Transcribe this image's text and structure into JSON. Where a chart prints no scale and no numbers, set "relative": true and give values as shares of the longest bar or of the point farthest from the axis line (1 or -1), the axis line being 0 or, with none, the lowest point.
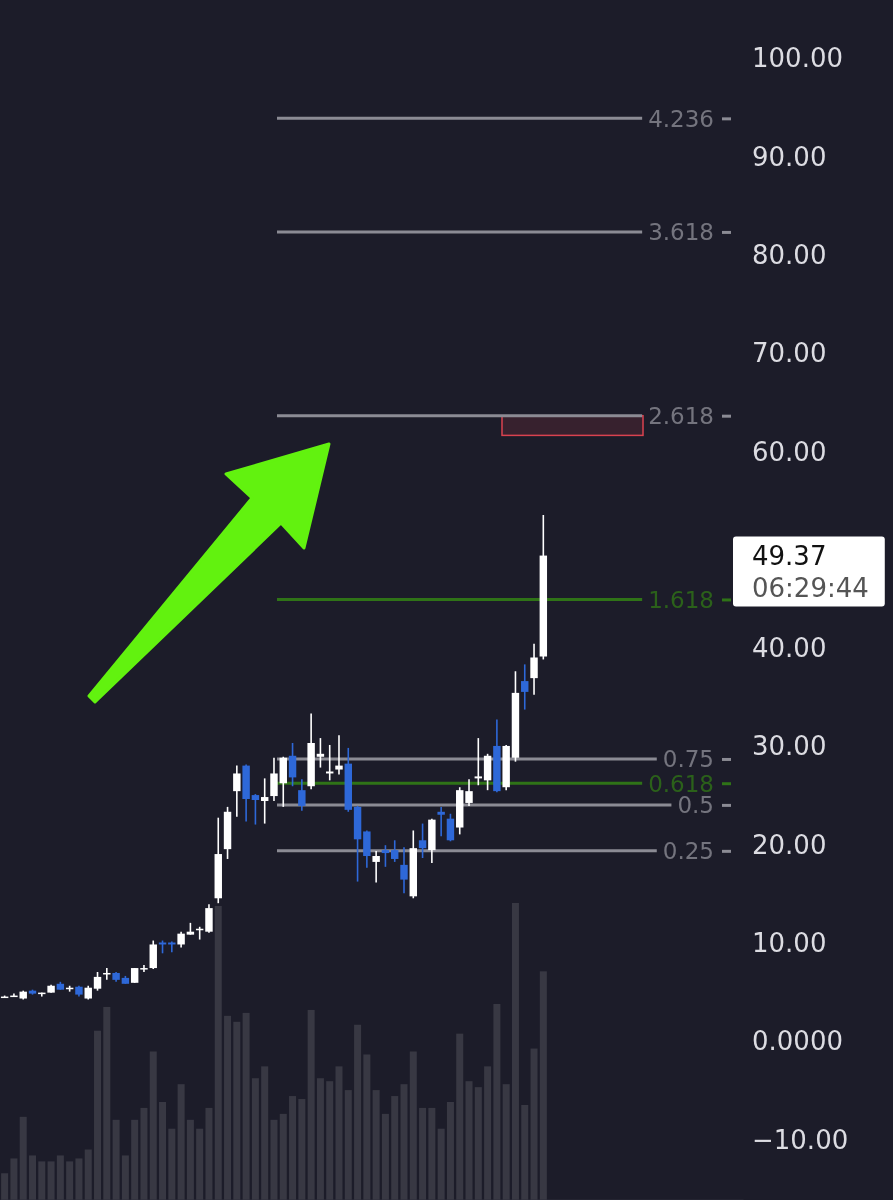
{
  "chart_data": [
    {
      "type": "candlestick",
      "categories": [
        null,
        null,
        null,
        null,
        null,
        null,
        null,
        null,
        null,
        null,
        null,
        null,
        null,
        null,
        null,
        null,
        null,
        null,
        null,
        null,
        null,
        null,
        null,
        null,
        null,
        null,
        null,
        null,
        null,
        null,
        null,
        null,
        null,
        null,
        null,
        null,
        null,
        null,
        null,
        null,
        null,
        null,
        null,
        null,
        null,
        null,
        null,
        null,
        null,
        null,
        null,
        null,
        null,
        null,
        null,
        null,
        null,
        null,
        null,
        null,
        null,
        null,
        null,
        null,
        null,
        null,
        null,
        null,
        null,
        null,
        null,
        null,
        null,
        null,
        null,
        null,
        null,
        null,
        null,
        null
      ],
      "ohlc": [
        [
          4.5,
          4.6,
          4.4,
          4.5
        ],
        [
          4.5,
          4.8,
          4.5,
          4.6
        ],
        [
          4.3,
          5.1,
          4.2,
          5.0
        ],
        [
          5.1,
          5.2,
          4.7,
          4.8
        ],
        [
          4.8,
          4.9,
          4.5,
          4.9
        ],
        [
          4.9,
          5.7,
          4.9,
          5.6
        ],
        [
          5.8,
          6.0,
          5.2,
          5.2
        ],
        [
          5.3,
          5.6,
          5.0,
          5.4
        ],
        [
          5.5,
          5.6,
          4.5,
          4.7
        ],
        [
          4.3,
          5.6,
          4.2,
          5.4
        ],
        [
          5.3,
          7.0,
          5.1,
          6.5
        ],
        [
          6.8,
          7.4,
          6.2,
          6.9
        ],
        [
          6.9,
          7.0,
          6.0,
          6.2
        ],
        [
          6.4,
          6.6,
          5.8,
          5.8
        ],
        [
          5.9,
          7.4,
          5.9,
          7.4
        ],
        [
          7.3,
          7.7,
          7.0,
          7.4
        ],
        [
          7.4,
          10.2,
          7.3,
          9.8
        ],
        [
          10.0,
          10.2,
          8.9,
          9.8
        ],
        [
          10.0,
          10.1,
          9.0,
          9.8
        ],
        [
          9.8,
          11.1,
          9.5,
          10.9
        ],
        [
          10.8,
          12.0,
          10.8,
          11.1
        ],
        [
          11.3,
          11.6,
          10.3,
          11.4
        ],
        [
          11.1,
          13.9,
          11.0,
          13.5
        ],
        [
          14.5,
          22.7,
          14.0,
          19.0
        ],
        [
          19.5,
          23.8,
          18.5,
          23.3
        ],
        [
          25.4,
          28.0,
          22.8,
          27.2
        ],
        [
          28.0,
          28.1,
          22.3,
          24.6
        ],
        [
          25.0,
          25.1,
          22.0,
          24.5
        ],
        [
          24.4,
          26.7,
          22.1,
          24.8
        ],
        [
          24.9,
          28.8,
          24.4,
          27.2
        ],
        [
          26.2,
          28.9,
          23.8,
          28.8
        ],
        [
          29.0,
          30.3,
          25.9,
          26.8
        ],
        [
          25.5,
          26.6,
          23.4,
          23.9
        ],
        [
          25.9,
          33.3,
          25.6,
          30.3
        ],
        [
          28.9,
          30.8,
          27.8,
          29.2
        ],
        [
          27.2,
          30.1,
          26.5,
          27.4
        ],
        [
          27.6,
          31.1,
          27.1,
          28.0
        ],
        [
          28.2,
          29.8,
          23.3,
          23.5
        ],
        [
          23.8,
          23.9,
          16.2,
          20.5
        ],
        [
          21.3,
          21.4,
          17.6,
          18.8
        ],
        [
          18.2,
          19.3,
          16.1,
          18.8
        ],
        [
          19.4,
          19.9,
          17.7,
          19.1
        ],
        [
          19.4,
          20.4,
          18.2,
          18.5
        ],
        [
          17.9,
          19.7,
          15.0,
          16.4
        ],
        [
          14.7,
          21.4,
          14.5,
          19.6
        ],
        [
          20.4,
          22.1,
          18.6,
          19.6
        ],
        [
          19.4,
          22.6,
          18.1,
          22.5
        ],
        [
          23.3,
          23.8,
          20.8,
          23.0
        ],
        [
          22.6,
          23.1,
          20.3,
          20.4
        ],
        [
          21.7,
          25.8,
          21.0,
          25.5
        ],
        [
          24.2,
          26.6,
          23.9,
          25.4
        ],
        [
          26.7,
          30.8,
          26.0,
          26.9
        ],
        [
          26.5,
          29.2,
          25.5,
          29.0
        ],
        [
          30.0,
          32.7,
          25.3,
          25.4
        ],
        [
          25.8,
          30.1,
          25.5,
          30.0
        ],
        [
          28.8,
          37.6,
          28.4,
          35.4
        ],
        [
          36.6,
          38.3,
          33.7,
          35.5
        ],
        [
          36.9,
          40.4,
          35.2,
          39.0
        ],
        [
          39.1,
          53.5,
          38.8,
          49.37
        ],
        null,
        null,
        null,
        null,
        null,
        null,
        null,
        null,
        null,
        null,
        null,
        null,
        null,
        null,
        null,
        null,
        null,
        null,
        null,
        null,
        null
      ],
      "colors": [
        "#ffffff",
        "#ffffff",
        "#ffffff",
        "#2e68d8",
        "#ffffff",
        "#ffffff",
        "#2e68d8",
        "#ffffff",
        "#2e68d8",
        "#ffffff",
        "#ffffff",
        "#ffffff",
        "#2e68d8",
        "#2e68d8",
        "#ffffff",
        "#ffffff",
        "#ffffff",
        "#2e68d8",
        "#2e68d8",
        "#ffffff",
        "#ffffff",
        "#ffffff",
        "#ffffff",
        "#ffffff",
        "#ffffff",
        "#ffffff",
        "#2e68d8",
        "#2e68d8",
        "#ffffff",
        "#ffffff",
        "#ffffff",
        "#2e68d8",
        "#2e68d8",
        "#ffffff",
        "#ffffff",
        "#ffffff",
        "#ffffff",
        "#2e68d8",
        "#2e68d8",
        "#2e68d8",
        "#ffffff",
        "#2e68d8",
        "#2e68d8",
        "#2e68d8",
        "#ffffff",
        "#2e68d8",
        "#ffffff",
        "#2e68d8",
        "#2e68d8",
        "#ffffff",
        "#ffffff",
        "#ffffff",
        "#ffffff",
        "#2e68d8",
        "#ffffff",
        "#ffffff",
        "#2e68d8",
        "#ffffff",
        "#ffffff",
        null,
        null,
        null,
        null,
        null,
        null,
        null,
        null,
        null,
        null,
        null,
        null,
        null,
        null,
        null,
        null,
        null,
        null,
        null,
        null,
        null
      ],
      "ylim": [
        -16.2,
        105.9
      ],
      "yticks": [
        {
          "value": 100,
          "label": "100.00"
        },
        {
          "value": 90,
          "label": "90.00"
        },
        {
          "value": 80,
          "label": "80.00"
        },
        {
          "value": 70,
          "label": "70.00"
        },
        {
          "value": 60,
          "label": "60.00"
        },
        {
          "value": 40,
          "label": "40.00"
        },
        {
          "value": 30,
          "label": "30.00"
        },
        {
          "value": 20,
          "label": "20.00"
        },
        {
          "value": 10,
          "label": "10.00"
        },
        {
          "value": 0,
          "label": "0.0000"
        },
        {
          "value": -10,
          "label": "−10.00"
        }
      ],
      "y2lim": [
        -1.65,
        4.88
      ],
      "y2ticks": [
        0.25,
        0.5,
        0.618,
        0.75,
        1.618,
        2.618,
        3.618,
        4.236
      ],
      "ref_lines": [
        {
          "axis": "y2",
          "value": 4.236,
          "color": "#8b8b94"
        },
        {
          "axis": "y2",
          "value": 3.618,
          "color": "#8b8b94"
        },
        {
          "axis": "y2",
          "value": 2.618,
          "color": "#8b8b94"
        },
        {
          "axis": "y2",
          "value": 1.618,
          "color": "#2f7317"
        },
        {
          "axis": "y2",
          "value": 0.75,
          "color": "#8b8b94"
        },
        {
          "axis": "y2",
          "value": 0.618,
          "color": "#2f7317"
        },
        {
          "axis": "y2",
          "value": 0.5,
          "color": "#8b8b94"
        },
        {
          "axis": "y2",
          "value": 0.25,
          "color": "#8b8b94"
        }
      ],
      "bands": [
        {
          "axis": "y",
          "from": 61.6,
          "to": 63.6,
          "color": "#d9424f"
        }
      ],
      "annotations": [
        "49.37",
        "06:29:44"
      ]
    },
    {
      "type": "bar",
      "relative": true,
      "categories": [
        null,
        null,
        null,
        null,
        null,
        null,
        null,
        null,
        null,
        null,
        null,
        null,
        null,
        null,
        null,
        null,
        null,
        null,
        null,
        null,
        null,
        null,
        null,
        null,
        null,
        null,
        null,
        null,
        null,
        null,
        null,
        null,
        null,
        null,
        null,
        null,
        null,
        null,
        null,
        null,
        null,
        null,
        null,
        null,
        null,
        null,
        null,
        null,
        null,
        null,
        null,
        null,
        null,
        null,
        null,
        null,
        null,
        null,
        null
      ],
      "values": [
        0.09,
        0.14,
        0.28,
        0.15,
        0.13,
        0.13,
        0.15,
        0.13,
        0.14,
        0.17,
        0.57,
        0.65,
        0.27,
        0.15,
        0.27,
        0.31,
        0.5,
        0.33,
        0.24,
        0.39,
        0.27,
        0.24,
        0.31,
        0.99,
        0.62,
        0.6,
        0.63,
        0.41,
        0.45,
        0.27,
        0.29,
        0.35,
        0.34,
        0.64,
        0.41,
        0.4,
        0.45,
        0.37,
        0.59,
        0.49,
        0.37,
        0.29,
        0.35,
        0.39,
        0.5,
        0.31,
        0.31,
        0.24,
        0.33,
        0.56,
        0.4,
        0.38,
        0.45,
        0.66,
        0.39,
        1,
        0.32,
        0.51,
        0.77
      ],
      "color": "#383843"
    }
  ]
}
